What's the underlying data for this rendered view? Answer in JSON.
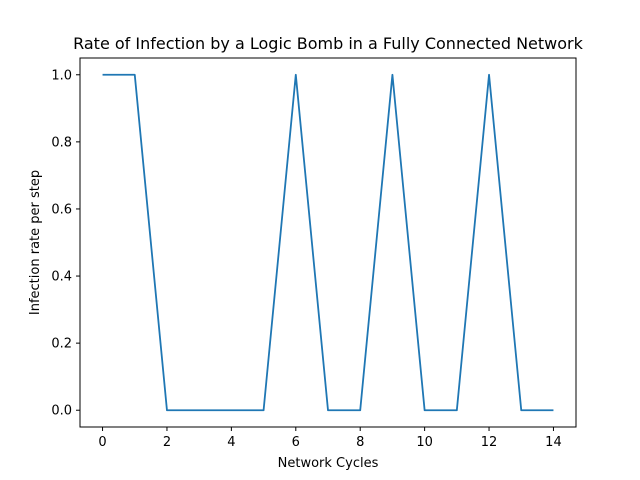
{
  "chart_data": {
    "type": "line",
    "title": "Rate of Infection by a Logic Bomb in a Fully Connected Network",
    "xlabel": "Network Cycles",
    "ylabel": "Infection rate per step",
    "xlim": [
      -0.7,
      14.7
    ],
    "ylim": [
      -0.05,
      1.05
    ],
    "xticks": [
      0,
      2,
      4,
      6,
      8,
      10,
      12,
      14
    ],
    "xtick_labels": [
      "0",
      "2",
      "4",
      "6",
      "8",
      "10",
      "12",
      "14"
    ],
    "yticks": [
      0.0,
      0.2,
      0.4,
      0.6,
      0.8,
      1.0
    ],
    "ytick_labels": [
      "0.0",
      "0.2",
      "0.4",
      "0.6",
      "0.8",
      "1.0"
    ],
    "grid": false,
    "series": [
      {
        "color": "#1f77b4",
        "x": [
          0,
          1,
          2,
          3,
          4,
          5,
          6,
          7,
          8,
          9,
          10,
          11,
          12,
          13,
          14
        ],
        "y": [
          1,
          1,
          0,
          0,
          0,
          0,
          1,
          0,
          0,
          1,
          0,
          0,
          1,
          0,
          0
        ]
      }
    ]
  }
}
